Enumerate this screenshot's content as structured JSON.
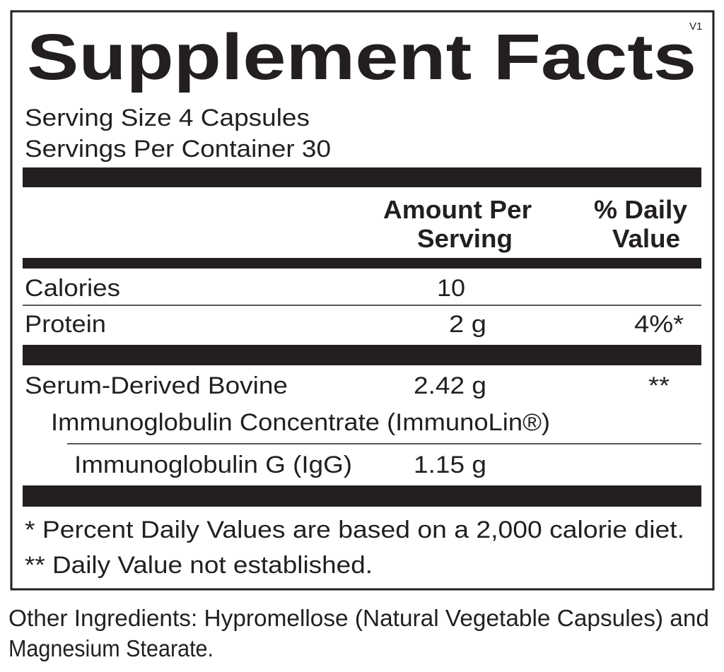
{
  "panel": {
    "title": "Supplement Facts",
    "version": "V1",
    "serving_size": "Serving Size 4 Capsules",
    "servings_per_container": "Servings Per Container 30",
    "header": {
      "amount_line1": "Amount Per",
      "amount_line2": "Serving",
      "dv_line1": "% Daily",
      "dv_line2": "Value"
    },
    "rows": [
      {
        "name": "Calories",
        "amount": "10"
      },
      {
        "name": "Protein",
        "amount": "2 g",
        "dv": "4%*"
      },
      {
        "name": "Serum-Derived Bovine",
        "name_line2": "Immunoglobulin Concentrate (ImmunoLin®)",
        "amount": "2.42 g",
        "dv": "**"
      },
      {
        "name": "Immunoglobulin G (IgG)",
        "amount": "1.15 g"
      }
    ],
    "footnotes": [
      "* Percent Daily Values are based on a 2,000 calorie diet.",
      "** Daily Value not established."
    ]
  },
  "other_ingredients": {
    "line1": "Other Ingredients: Hypromellose (Natural Vegetable Capsules) and",
    "line2": "Magnesium Stearate."
  }
}
